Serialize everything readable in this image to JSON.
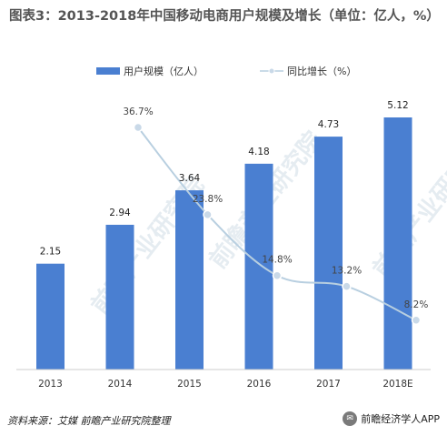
{
  "title": "图表3：2013-2018年中国移动电商用户规模及增长（单位：亿人，%）",
  "legend": {
    "bar_label": "用户规模（亿人）",
    "line_label": "同比增长（%）"
  },
  "source": "资料来源：艾媒  前瞻产业研究院整理",
  "brand": "前瞻经济学人APP",
  "watermark": "前瞻产业研究院",
  "colors": {
    "bar": "#4a7fd1",
    "line": "#b8cfe0",
    "marker": "#c9d9e8"
  },
  "chart_data": {
    "type": "bar",
    "categories": [
      "2013",
      "2014",
      "2015",
      "2016",
      "2017",
      "2018E"
    ],
    "series": [
      {
        "name": "用户规模（亿人）",
        "type": "bar",
        "values": [
          2.15,
          2.94,
          3.64,
          4.18,
          4.73,
          5.12
        ],
        "labels": [
          "2.15",
          "2.94",
          "3.64",
          "4.18",
          "4.73",
          "5.12"
        ]
      },
      {
        "name": "同比增长（%）",
        "type": "line",
        "values": [
          null,
          36.7,
          23.8,
          14.8,
          13.2,
          8.2
        ],
        "labels": [
          "",
          "36.7%",
          "23.8%",
          "14.8%",
          "13.2%",
          "8.2%"
        ]
      }
    ],
    "legend_position": "top",
    "grid": false
  }
}
